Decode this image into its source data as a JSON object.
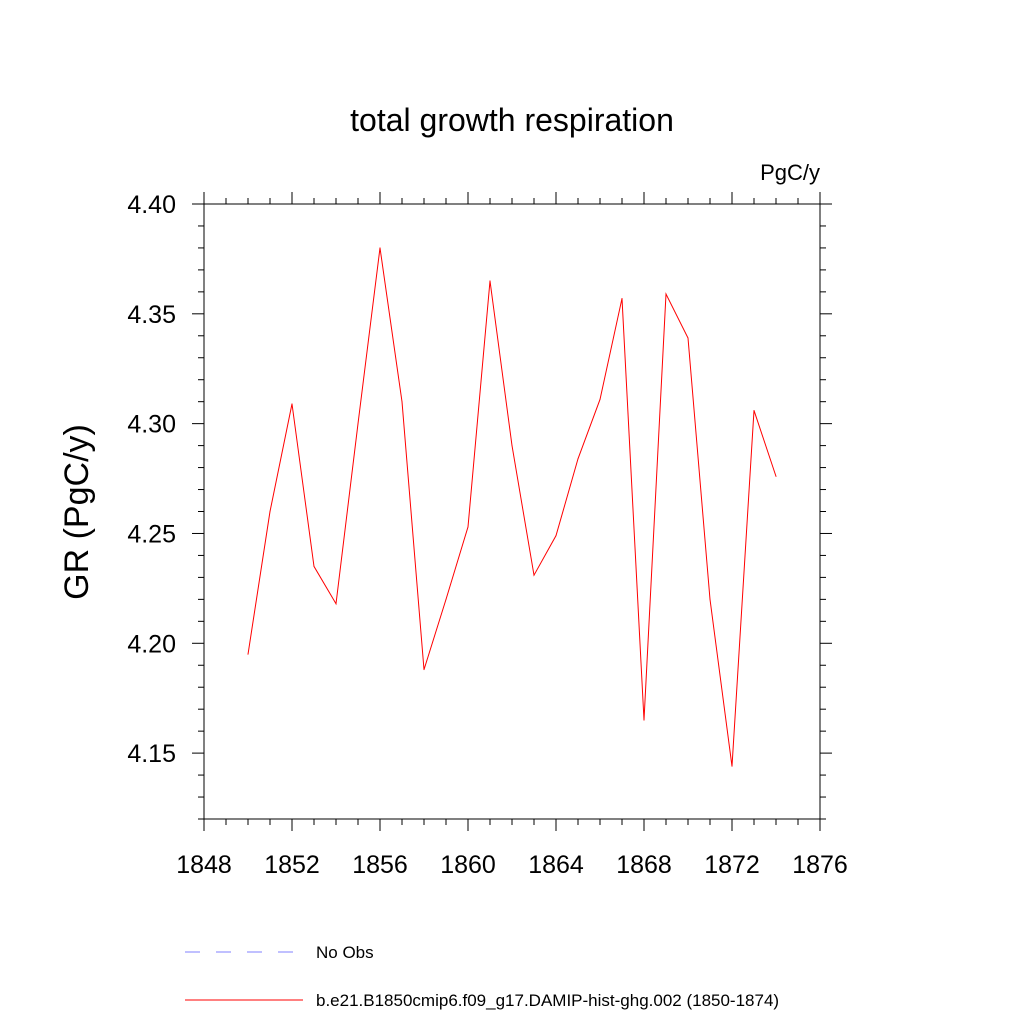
{
  "chart_data": {
    "type": "line",
    "title": "total growth respiration",
    "units_label": "PgC/y",
    "xlabel": "",
    "ylabel": "GR  (PgC/y)",
    "xlim": [
      1848,
      1876
    ],
    "ylim": [
      4.12,
      4.4
    ],
    "x_ticks": [
      "1848",
      "1852",
      "1856",
      "1860",
      "1864",
      "1868",
      "1872",
      "1876"
    ],
    "y_ticks": [
      "4.15",
      "4.20",
      "4.25",
      "4.30",
      "4.35",
      "4.40"
    ],
    "grid": false,
    "legend_position": "bottom",
    "series": [
      {
        "name": "b.e21.B1850cmip6.f09_g17.DAMIP-hist-ghg.002 (1850-1874)",
        "color": "#ff0000",
        "style": "solid",
        "x": [
          1850,
          1851,
          1852,
          1853,
          1854,
          1855,
          1856,
          1857,
          1858,
          1859,
          1860,
          1861,
          1862,
          1863,
          1864,
          1865,
          1866,
          1867,
          1868,
          1869,
          1870,
          1871,
          1872,
          1873,
          1874
        ],
        "values": [
          4.195,
          4.26,
          4.309,
          4.235,
          4.218,
          4.3,
          4.38,
          4.31,
          4.188,
          4.22,
          4.253,
          4.365,
          4.29,
          4.231,
          4.249,
          4.284,
          4.311,
          4.357,
          4.165,
          4.359,
          4.339,
          4.22,
          4.144,
          4.306,
          4.276
        ]
      },
      {
        "name": "No Obs",
        "color": "#8080ff",
        "style": "dashed",
        "x": [],
        "values": []
      }
    ]
  }
}
